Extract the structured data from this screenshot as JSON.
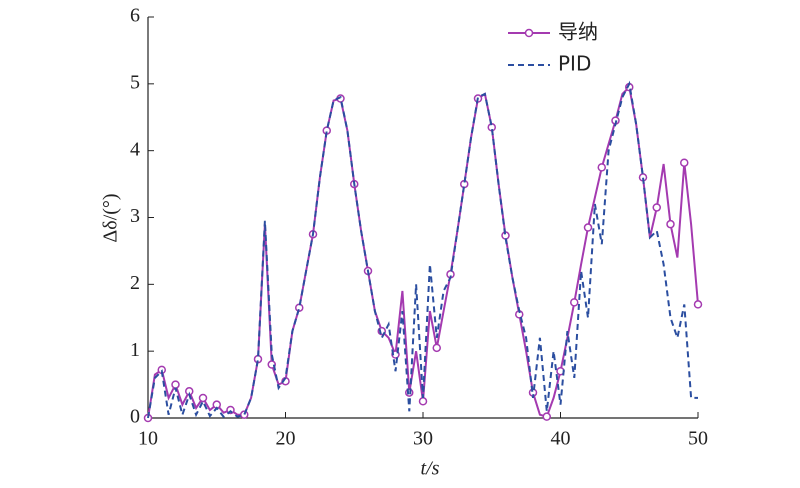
{
  "chart_data": {
    "type": "line",
    "xlabel": "t/s",
    "ylabel": "Δδ/(°)",
    "x": [
      10,
      10.5,
      11,
      11.5,
      12,
      12.5,
      13,
      13.5,
      14,
      14.5,
      15,
      15.5,
      16,
      16.5,
      17,
      17.5,
      18,
      18.5,
      19,
      19.5,
      20,
      20.5,
      21,
      21.5,
      22,
      22.5,
      23,
      23.5,
      24,
      24.5,
      25,
      25.5,
      26,
      26.5,
      27,
      27.5,
      28,
      28.5,
      29,
      29.5,
      30,
      30.5,
      31,
      31.5,
      32,
      32.5,
      33,
      33.5,
      34,
      34.5,
      35,
      35.5,
      36,
      36.5,
      37,
      37.5,
      38,
      38.5,
      39,
      39.5,
      40,
      40.5,
      41,
      41.5,
      42,
      42.5,
      43,
      43.5,
      44,
      44.5,
      45,
      45.5,
      46,
      46.5,
      47,
      47.5,
      48,
      48.5,
      49,
      49.5,
      50
    ],
    "series": [
      {
        "name": "导纳",
        "color": "#a43ab0",
        "dash": false,
        "marker": "o",
        "values": [
          0,
          0.65,
          0.72,
          0.3,
          0.5,
          0.2,
          0.4,
          0.15,
          0.3,
          0.12,
          0.2,
          0.08,
          0.12,
          0.05,
          0.05,
          0.3,
          0.88,
          2.9,
          0.8,
          0.5,
          0.55,
          1.3,
          1.65,
          2.2,
          2.75,
          3.6,
          4.3,
          4.75,
          4.78,
          4.3,
          3.5,
          2.8,
          2.2,
          1.6,
          1.3,
          1.2,
          0.95,
          1.9,
          0.38,
          1.0,
          0.25,
          1.6,
          1.05,
          1.6,
          2.15,
          2.8,
          3.5,
          4.2,
          4.78,
          4.85,
          4.35,
          3.5,
          2.73,
          2.1,
          1.55,
          1.0,
          0.38,
          0.05,
          0.02,
          0.3,
          0.7,
          1.2,
          1.73,
          2.3,
          2.85,
          3.3,
          3.75,
          4.1,
          4.45,
          4.85,
          4.95,
          4.4,
          3.6,
          2.7,
          3.15,
          3.8,
          2.9,
          2.4,
          3.82,
          2.9,
          1.7
        ]
      },
      {
        "name": "PID",
        "color": "#2b4ea0",
        "dash": true,
        "marker": null,
        "values": [
          0,
          0.6,
          0.7,
          0.05,
          0.45,
          0.05,
          0.35,
          0.05,
          0.25,
          0.03,
          0.15,
          0.02,
          0.1,
          0.02,
          0.05,
          0.3,
          0.88,
          2.95,
          0.95,
          0.45,
          0.6,
          1.3,
          1.65,
          2.2,
          2.75,
          3.6,
          4.3,
          4.75,
          4.8,
          4.3,
          3.5,
          2.8,
          2.2,
          1.6,
          1.2,
          1.4,
          0.7,
          1.6,
          0.1,
          2.0,
          0.3,
          2.3,
          1.2,
          1.9,
          2.1,
          2.8,
          3.5,
          4.2,
          4.8,
          4.85,
          4.35,
          3.5,
          2.7,
          2.1,
          1.6,
          1.2,
          0.3,
          1.2,
          0.1,
          1.0,
          0.2,
          1.3,
          0.6,
          2.2,
          1.5,
          3.2,
          2.6,
          4.0,
          4.4,
          4.8,
          5.0,
          4.4,
          3.6,
          2.7,
          2.8,
          2.3,
          1.5,
          1.2,
          1.7,
          0.3,
          0.3
        ]
      }
    ],
    "xlim": [
      10,
      50
    ],
    "xticks": [
      10,
      20,
      30,
      40,
      50
    ],
    "ylim": [
      0,
      6
    ],
    "yticks": [
      0,
      1,
      2,
      3,
      4,
      5,
      6
    ],
    "legend": "upper right"
  }
}
